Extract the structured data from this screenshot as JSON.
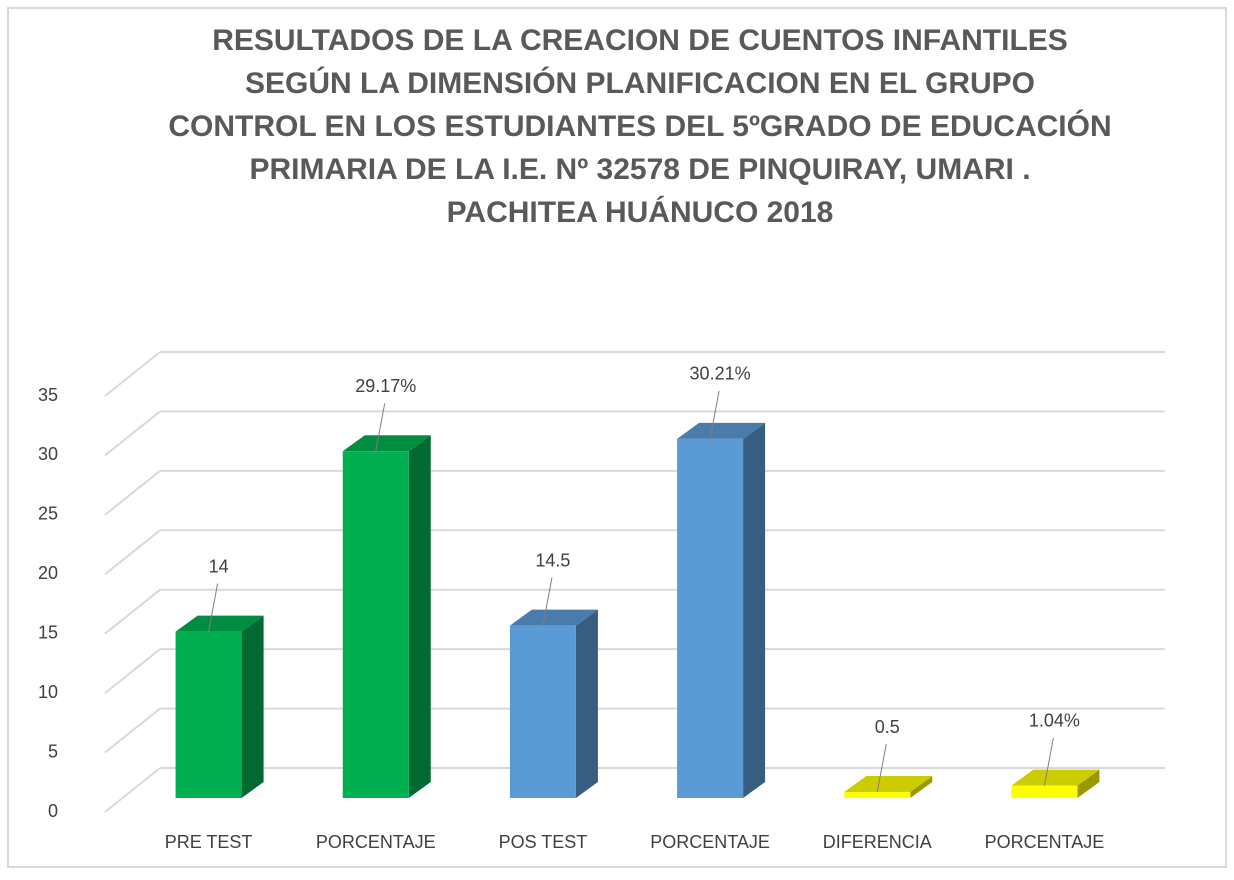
{
  "chart_data": {
    "type": "bar3d",
    "title": [
      "RESULTADOS DE LA CREACION DE CUENTOS INFANTILES",
      "SEGÚN LA DIMENSIÓN PLANIFICACION EN EL GRUPO",
      "CONTROL EN LOS ESTUDIANTES DEL 5ºGRADO DE EDUCACIÓN",
      "PRIMARIA DE LA I.E. Nº 32578 DE PINQUIRAY, UMARI .",
      "PACHITEA HUÁNUCO 2018"
    ],
    "categories": [
      "PRE TEST",
      "PORCENTAJE",
      "POS TEST",
      "PORCENTAJE",
      "DIFERENCIA",
      "PORCENTAJE"
    ],
    "values": [
      14,
      29.17,
      14.5,
      30.21,
      0.5,
      1.04
    ],
    "value_labels": [
      "14",
      "29.17%",
      "14.5",
      "30.21%",
      "0.5",
      "1.04%"
    ],
    "colors": [
      "#00b050",
      "#00b050",
      "#5b9bd5",
      "#5b9bd5",
      "#ffff00",
      "#ffff00"
    ],
    "ylim": [
      0,
      35
    ],
    "yticks": [
      0,
      5,
      10,
      15,
      20,
      25,
      30,
      35
    ],
    "grid": true
  }
}
